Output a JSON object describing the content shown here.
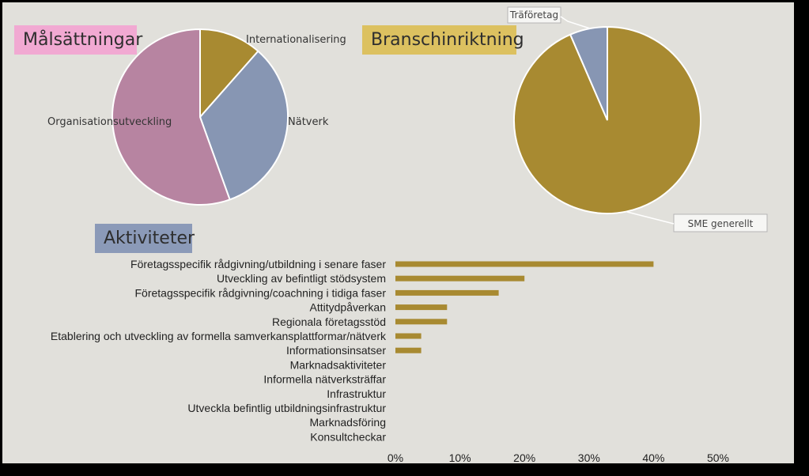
{
  "titles": {
    "goals": "Målsättningar",
    "industry": "Branschinriktning",
    "activities": "Aktiviteter"
  },
  "colors": {
    "background": "#e1e0db",
    "gold": "#a88a31",
    "blue": "#8796b3",
    "pink": "#b784a1",
    "goals_box": "#f1a9d2",
    "industry_box": "#dcc160",
    "activities_box": "#8b9ab8"
  },
  "chart_data": [
    {
      "type": "pie",
      "title": "Målsättningar",
      "slices": [
        {
          "label": "Internationalisering",
          "value": 11.5,
          "color": "#a88a31"
        },
        {
          "label": "Nätverk",
          "value": 33.0,
          "color": "#8796b3"
        },
        {
          "label": "Organisationsutveckling",
          "value": 55.5,
          "color": "#b784a1"
        }
      ]
    },
    {
      "type": "pie",
      "title": "Branschinriktning",
      "slices": [
        {
          "label": "SME generellt",
          "value": 93.5,
          "color": "#a88a31"
        },
        {
          "label": "Träföretag",
          "value": 6.5,
          "color": "#8796b3"
        }
      ]
    },
    {
      "type": "bar",
      "orientation": "horizontal",
      "title": "Aktiviteter",
      "categories": [
        "Företagsspecifik rådgivning/utbildning i senare faser",
        "Utveckling av befintligt stödsystem",
        "Företagsspecifik rådgivning/coachning i tidiga faser",
        "Attitydpåverkan",
        "Regionala företagsstöd",
        "Etablering och utveckling av formella samverkansplattformar/nätverk",
        "Informationsinsatser",
        "Marknadsaktiviteter",
        "Informella nätverksträffar",
        "Infrastruktur",
        "Utveckla befintlig utbildningsinfrastruktur",
        "Marknadsföring",
        "Konsultcheckar"
      ],
      "values": [
        40,
        20,
        16,
        8,
        8,
        4,
        4,
        0,
        0,
        0,
        0,
        0,
        0
      ],
      "xlim": [
        0,
        50
      ],
      "xticks": [
        "0%",
        "10%",
        "20%",
        "30%",
        "40%",
        "50%"
      ],
      "color": "#a88a31",
      "grid": false
    }
  ]
}
